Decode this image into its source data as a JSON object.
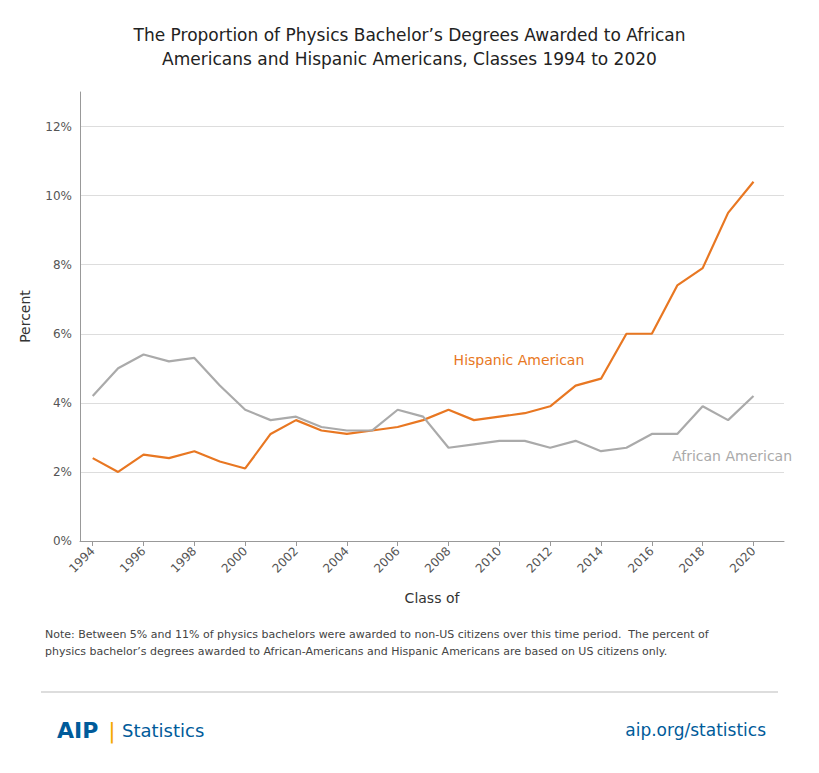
{
  "chart_data": {
    "type": "line",
    "title": "The Proportion of Physics Bachelor’s Degrees Awarded to African\nAmericans and Hispanic Americans, Classes 1994 to 2020",
    "x_label": "Class of",
    "y_label": "Percent",
    "x": [
      1994,
      1995,
      1996,
      1997,
      1998,
      1999,
      2000,
      2001,
      2002,
      2003,
      2004,
      2005,
      2006,
      2007,
      2008,
      2009,
      2010,
      2011,
      2012,
      2013,
      2014,
      2015,
      2016,
      2017,
      2018,
      2019,
      2020
    ],
    "series": [
      {
        "name": "Hispanic American",
        "color": "#E87722",
        "values": [
          2.4,
          2.0,
          2.5,
          2.4,
          2.6,
          2.3,
          2.1,
          3.1,
          3.5,
          3.2,
          3.1,
          3.2,
          3.3,
          3.5,
          3.8,
          3.5,
          3.6,
          3.7,
          3.9,
          4.5,
          4.7,
          6.0,
          6.0,
          7.4,
          7.9,
          9.5,
          10.4
        ]
      },
      {
        "name": "African American",
        "color": "#AAAAAA",
        "values": [
          4.2,
          5.0,
          5.4,
          5.2,
          5.3,
          4.5,
          3.8,
          3.5,
          3.6,
          3.3,
          3.2,
          3.2,
          3.8,
          3.6,
          2.7,
          2.8,
          2.9,
          2.9,
          2.7,
          2.9,
          2.6,
          2.7,
          3.1,
          3.1,
          3.9,
          3.5,
          4.2
        ]
      }
    ],
    "xlim": [
      1993.5,
      2021.2
    ],
    "xticks": [
      1994,
      1996,
      1998,
      2000,
      2002,
      2004,
      2006,
      2008,
      2010,
      2012,
      2014,
      2016,
      2018,
      2020
    ],
    "ylim": [
      0,
      13
    ],
    "yticks": [
      {
        "value": 0,
        "label": "0%"
      },
      {
        "value": 2,
        "label": "2%"
      },
      {
        "value": 4,
        "label": "4%"
      },
      {
        "value": 6,
        "label": "6%"
      },
      {
        "value": 8,
        "label": "8%"
      },
      {
        "value": 10,
        "label": "10%"
      },
      {
        "value": 12,
        "label": "12%"
      }
    ],
    "grid": true,
    "annotations": [
      {
        "text": "Hispanic American",
        "x": 2008.2,
        "y": 5.05,
        "color": "#E87722"
      },
      {
        "text": "African American",
        "x": 2016.8,
        "y": 2.25,
        "color": "#AAAAAA"
      }
    ],
    "note": "Note: Between 5% and 11% of physics bachelors were awarded to non-US citizens over this time period.  The percent of\nphysics bachelor’s degrees awarded to African-Americans and Hispanic Americans are based on US citizens only.",
    "footer": [
      {
        "text": "AIP",
        "color": "#005B9A"
      },
      {
        "text": "|",
        "color": "#F5A800"
      },
      {
        "text": "Statistics",
        "color": "#005B9A"
      },
      {
        "text": "aip.org/statistics",
        "color": "#005B9A"
      }
    ]
  }
}
